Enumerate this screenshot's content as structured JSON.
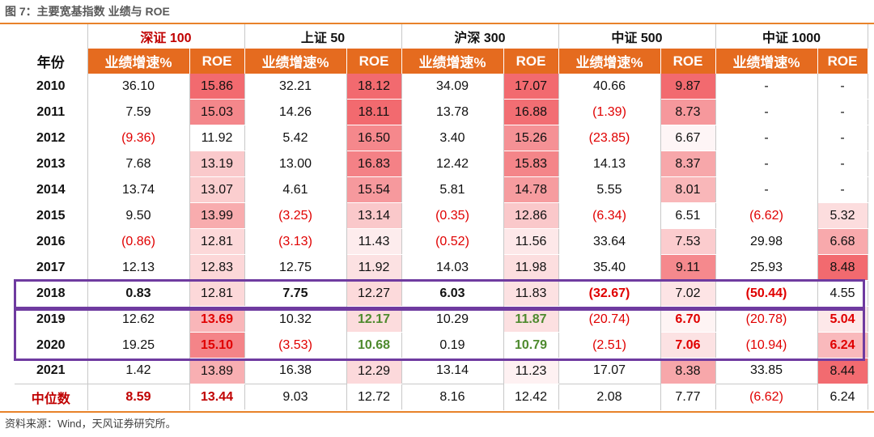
{
  "title": "图 7：主要宽基指数 业绩与 ROE",
  "source": "资料来源：Wind，天风证券研究所。",
  "year_header": "年份",
  "indices": [
    "深证 100",
    "上证 50",
    "沪深 300",
    "中证 500",
    "中证 1000"
  ],
  "sub_headers": {
    "growth": "业绩增速%",
    "roe": "ROE"
  },
  "rows": [
    {
      "year": "2010",
      "cells": [
        "36.10",
        "15.86",
        "32.21",
        "18.12",
        "34.09",
        "17.07",
        "40.66",
        "9.87",
        "-",
        "-"
      ]
    },
    {
      "year": "2011",
      "cells": [
        "7.59",
        "15.03",
        "14.26",
        "18.11",
        "13.78",
        "16.88",
        "(1.39)",
        "8.73",
        "-",
        "-"
      ]
    },
    {
      "year": "2012",
      "cells": [
        "(9.36)",
        "11.92",
        "5.42",
        "16.50",
        "3.40",
        "15.26",
        "(23.85)",
        "6.67",
        "-",
        "-"
      ]
    },
    {
      "year": "2013",
      "cells": [
        "7.68",
        "13.19",
        "13.00",
        "16.83",
        "12.42",
        "15.83",
        "14.13",
        "8.37",
        "-",
        "-"
      ]
    },
    {
      "year": "2014",
      "cells": [
        "13.74",
        "13.07",
        "4.61",
        "15.54",
        "5.81",
        "14.78",
        "5.55",
        "8.01",
        "-",
        "-"
      ]
    },
    {
      "year": "2015",
      "cells": [
        "9.50",
        "13.99",
        "(3.25)",
        "13.14",
        "(0.35)",
        "12.86",
        "(6.34)",
        "6.51",
        "(6.62)",
        "5.32"
      ]
    },
    {
      "year": "2016",
      "cells": [
        "(0.86)",
        "12.81",
        "(3.13)",
        "11.43",
        "(0.52)",
        "11.56",
        "33.64",
        "7.53",
        "29.98",
        "6.68"
      ]
    },
    {
      "year": "2017",
      "cells": [
        "12.13",
        "12.83",
        "12.75",
        "11.92",
        "14.03",
        "11.98",
        "35.40",
        "9.11",
        "25.93",
        "8.48"
      ]
    },
    {
      "year": "2018",
      "cells": [
        "0.83",
        "12.81",
        "7.75",
        "12.27",
        "6.03",
        "11.83",
        "(32.67)",
        "7.02",
        "(50.44)",
        "4.55"
      ]
    },
    {
      "year": "2019",
      "cells": [
        "12.62",
        "13.69",
        "10.32",
        "12.17",
        "10.29",
        "11.87",
        "(20.74)",
        "6.70",
        "(20.78)",
        "5.04"
      ]
    },
    {
      "year": "2020",
      "cells": [
        "19.25",
        "15.10",
        "(3.53)",
        "10.68",
        "0.19",
        "10.79",
        "(2.51)",
        "7.06",
        "(10.94)",
        "6.24"
      ]
    },
    {
      "year": "2021",
      "cells": [
        "1.42",
        "13.89",
        "16.38",
        "12.29",
        "13.14",
        "11.23",
        "17.07",
        "8.38",
        "33.85",
        "8.44"
      ]
    }
  ],
  "median": {
    "label": "中位数",
    "cells": [
      "8.59",
      "13.44",
      "9.03",
      "12.72",
      "8.16",
      "12.42",
      "2.08",
      "7.77",
      "(6.62)",
      "6.24"
    ]
  },
  "colors": {
    "accent_orange": "#E56B1F",
    "rule_orange": "#E8822A",
    "highlight_box": "#6F3BA0",
    "negative_red": "#E00000",
    "green": "#4E8A2E",
    "roe_heat_low": "#FFFFFF",
    "roe_heat_high": "#F26A6F"
  }
}
